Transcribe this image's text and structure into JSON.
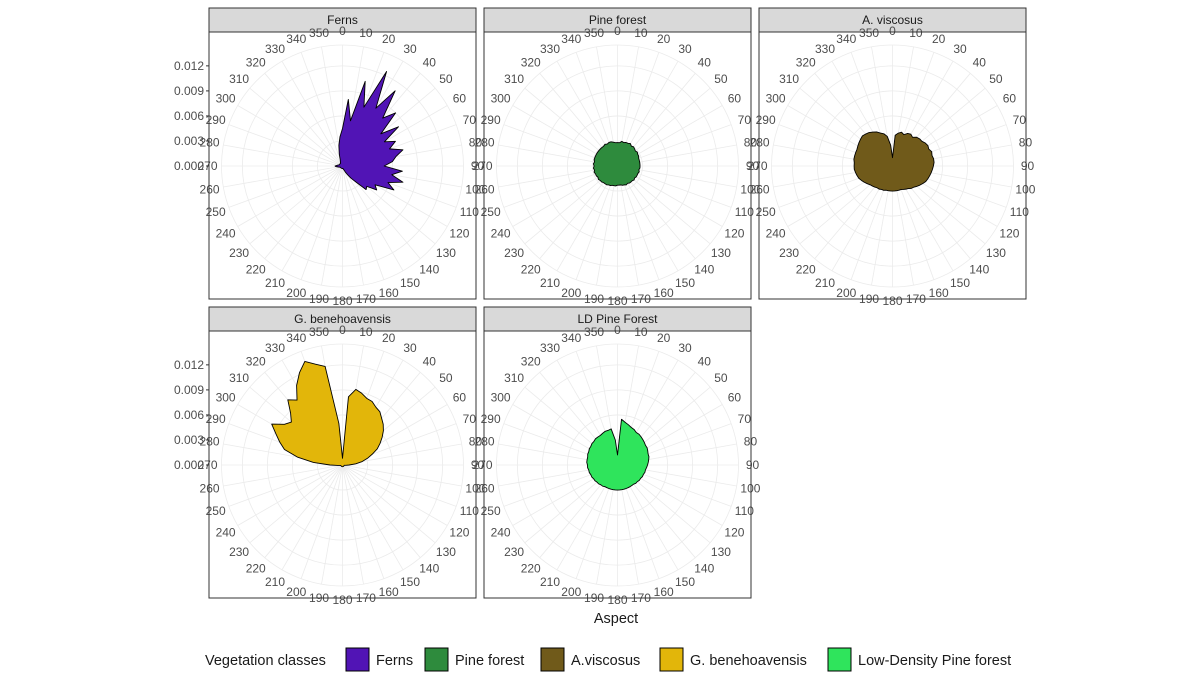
{
  "chart_data": {
    "type": "area",
    "coord": "polar",
    "xlabel": "Aspect",
    "theta_unit": "degrees",
    "theta_range": [
      0,
      360
    ],
    "theta_breaks": [
      0,
      10,
      20,
      30,
      40,
      50,
      60,
      70,
      80,
      90,
      100,
      110,
      120,
      130,
      140,
      150,
      160,
      170,
      180,
      190,
      200,
      210,
      220,
      230,
      240,
      250,
      260,
      270,
      280,
      290,
      300,
      310,
      320,
      330,
      340,
      350
    ],
    "r_breaks": [
      0.0,
      0.003,
      0.006,
      0.009,
      0.012
    ],
    "r_labels": [
      "0.000",
      "0.003",
      "0.006",
      "0.009",
      "0.012"
    ],
    "r_max": 0.0145,
    "grid": true,
    "legend": {
      "title": "Vegetation classes",
      "position": "bottom",
      "items": [
        {
          "label": "Ferns",
          "color": "#5114b5"
        },
        {
          "label": "Pine forest",
          "color": "#2e8b3d"
        },
        {
          "label": "A.viscosus",
          "color": "#705a1a"
        },
        {
          "label": "G. benehoavensis",
          "color": "#e2b60a"
        },
        {
          "label": "Low-Density Pine forest",
          "color": "#2fe45c"
        }
      ]
    },
    "panels": [
      {
        "title": "Ferns",
        "color": "#5114b5",
        "theta": [
          0,
          5,
          10,
          15,
          20,
          25,
          30,
          35,
          40,
          45,
          50,
          55,
          60,
          65,
          70,
          75,
          80,
          85,
          90,
          95,
          100,
          105,
          110,
          115,
          120,
          125,
          130,
          135,
          140,
          145,
          150,
          155,
          160,
          165,
          170,
          175,
          180,
          185,
          190,
          195,
          200,
          205,
          210,
          215,
          220,
          225,
          230,
          235,
          240,
          245,
          250,
          255,
          260,
          265,
          270,
          275,
          280,
          285,
          290,
          295,
          300,
          305,
          310,
          315,
          320,
          325,
          330,
          335,
          340,
          345,
          350,
          355
        ],
        "density": [
          0.0045,
          0.008,
          0.0055,
          0.0105,
          0.0075,
          0.0125,
          0.008,
          0.011,
          0.0075,
          0.009,
          0.006,
          0.0082,
          0.0058,
          0.007,
          0.006,
          0.0075,
          0.0065,
          0.006,
          0.005,
          0.0072,
          0.006,
          0.0075,
          0.0058,
          0.0068,
          0.0045,
          0.005,
          0.0038,
          0.004,
          0.0025,
          0.0018,
          0.0012,
          0.0008,
          0.0005,
          0.0004,
          0.0003,
          0.0003,
          0.0003,
          0.0003,
          0.0003,
          0.0003,
          0.0003,
          0.0003,
          0.0003,
          0.0003,
          0.0003,
          0.0003,
          0.0003,
          0.0003,
          0.0003,
          0.0003,
          0.0004,
          0.0005,
          0.0006,
          0.0008,
          0.0009,
          0.0007,
          0.0006,
          0.0005,
          0.0004,
          0.0004,
          0.0004,
          0.0004,
          0.0004,
          0.0004,
          0.0004,
          0.0004,
          0.0005,
          0.0006,
          0.0008,
          0.0015,
          0.0025,
          0.0035
        ]
      },
      {
        "title": "Pine forest",
        "color": "#2e8b3d",
        "theta": [
          0,
          5,
          10,
          15,
          20,
          25,
          30,
          35,
          40,
          45,
          50,
          55,
          60,
          65,
          70,
          75,
          80,
          85,
          90,
          95,
          100,
          105,
          110,
          115,
          120,
          125,
          130,
          135,
          140,
          145,
          150,
          155,
          160,
          165,
          170,
          175,
          180,
          185,
          190,
          195,
          200,
          205,
          210,
          215,
          220,
          225,
          230,
          235,
          240,
          245,
          250,
          255,
          260,
          265,
          270,
          275,
          280,
          285,
          290,
          295,
          300,
          305,
          310,
          315,
          320,
          325,
          330,
          335,
          340,
          345,
          350,
          355
        ],
        "density": [
          0.0028,
          0.0028,
          0.003,
          0.0029,
          0.003,
          0.003,
          0.0031,
          0.0029,
          0.003,
          0.0029,
          0.0028,
          0.0029,
          0.0028,
          0.0028,
          0.0027,
          0.0027,
          0.0027,
          0.0027,
          0.0027,
          0.0027,
          0.0026,
          0.0027,
          0.0026,
          0.0026,
          0.0026,
          0.0025,
          0.0026,
          0.0025,
          0.0025,
          0.0025,
          0.0024,
          0.0025,
          0.0024,
          0.0024,
          0.0023,
          0.0023,
          0.0023,
          0.0024,
          0.0024,
          0.0024,
          0.0025,
          0.0025,
          0.0026,
          0.0026,
          0.0026,
          0.0027,
          0.0027,
          0.0028,
          0.0027,
          0.0028,
          0.0028,
          0.0029,
          0.0028,
          0.0029,
          0.0028,
          0.0029,
          0.0028,
          0.0029,
          0.0029,
          0.0029,
          0.0029,
          0.0029,
          0.0029,
          0.0029,
          0.0029,
          0.0029,
          0.003,
          0.0029,
          0.003,
          0.003,
          0.0029,
          0.0028
        ]
      },
      {
        "title": "A. viscosus",
        "color": "#705a1a",
        "theta": [
          0,
          5,
          10,
          15,
          20,
          25,
          30,
          35,
          40,
          45,
          50,
          55,
          60,
          65,
          70,
          75,
          80,
          85,
          90,
          95,
          100,
          105,
          110,
          115,
          120,
          125,
          130,
          135,
          140,
          145,
          150,
          155,
          160,
          165,
          170,
          175,
          180,
          185,
          190,
          195,
          200,
          205,
          210,
          215,
          220,
          225,
          230,
          235,
          240,
          245,
          250,
          255,
          260,
          265,
          270,
          275,
          280,
          285,
          290,
          295,
          300,
          305,
          310,
          315,
          320,
          325,
          330,
          335,
          340,
          345,
          350,
          355
        ],
        "density": [
          0.001,
          0.0037,
          0.004,
          0.0042,
          0.004,
          0.0043,
          0.0044,
          0.0042,
          0.0045,
          0.0046,
          0.0046,
          0.0048,
          0.0049,
          0.0048,
          0.005,
          0.0049,
          0.005,
          0.005,
          0.0049,
          0.0048,
          0.0047,
          0.0046,
          0.0045,
          0.0044,
          0.0042,
          0.004,
          0.0038,
          0.0036,
          0.0035,
          0.0033,
          0.0032,
          0.0031,
          0.003,
          0.003,
          0.003,
          0.003,
          0.003,
          0.003,
          0.003,
          0.003,
          0.0031,
          0.0031,
          0.0032,
          0.0032,
          0.0033,
          0.0034,
          0.0035,
          0.0037,
          0.0039,
          0.0041,
          0.0043,
          0.0044,
          0.0045,
          0.0046,
          0.0046,
          0.0046,
          0.0047,
          0.0047,
          0.0047,
          0.0047,
          0.0048,
          0.0049,
          0.005,
          0.0051,
          0.005,
          0.0049,
          0.0047,
          0.0045,
          0.0042,
          0.004,
          0.0036,
          0.0025
        ]
      },
      {
        "title": "G. benehoavensis",
        "color": "#e2b60a",
        "theta": [
          0,
          5,
          10,
          15,
          20,
          25,
          30,
          35,
          40,
          45,
          50,
          55,
          60,
          65,
          70,
          75,
          80,
          85,
          90,
          95,
          100,
          105,
          110,
          115,
          120,
          125,
          130,
          135,
          140,
          145,
          150,
          155,
          160,
          165,
          170,
          175,
          180,
          185,
          190,
          195,
          200,
          205,
          210,
          215,
          220,
          225,
          230,
          235,
          240,
          245,
          250,
          255,
          260,
          265,
          270,
          275,
          280,
          285,
          290,
          295,
          300,
          305,
          310,
          315,
          320,
          325,
          330,
          335,
          340,
          345,
          350,
          355
        ],
        "density": [
          0.0008,
          0.0082,
          0.0092,
          0.0089,
          0.0085,
          0.0084,
          0.008,
          0.0078,
          0.0073,
          0.0069,
          0.0064,
          0.0058,
          0.0052,
          0.0046,
          0.0038,
          0.0031,
          0.0024,
          0.0016,
          0.0008,
          0.0004,
          0.0002,
          0.0002,
          0.0002,
          0.0002,
          0.0002,
          0.0002,
          0.0002,
          0.0002,
          0.0002,
          0.0002,
          0.0002,
          0.0002,
          0.0002,
          0.0002,
          0.0002,
          0.0002,
          0.0002,
          0.0002,
          0.0002,
          0.0002,
          0.0002,
          0.0002,
          0.0002,
          0.0002,
          0.0002,
          0.0002,
          0.0002,
          0.0002,
          0.0002,
          0.0002,
          0.0002,
          0.0002,
          0.0003,
          0.0006,
          0.0015,
          0.0035,
          0.0055,
          0.0072,
          0.008,
          0.0088,
          0.0098,
          0.0085,
          0.008,
          0.0088,
          0.0102,
          0.0095,
          0.011,
          0.0122,
          0.0132,
          0.0125,
          0.012,
          0.005
        ]
      },
      {
        "title": "LD Pine Forest",
        "color": "#2fe45c",
        "theta": [
          0,
          5,
          10,
          15,
          20,
          25,
          30,
          35,
          40,
          45,
          50,
          55,
          60,
          65,
          70,
          75,
          80,
          85,
          90,
          95,
          100,
          105,
          110,
          115,
          120,
          125,
          130,
          135,
          140,
          145,
          150,
          155,
          160,
          165,
          170,
          175,
          180,
          185,
          190,
          195,
          200,
          205,
          210,
          215,
          220,
          225,
          230,
          235,
          240,
          245,
          250,
          255,
          260,
          265,
          270,
          275,
          280,
          285,
          290,
          295,
          300,
          305,
          310,
          315,
          320,
          325,
          330,
          335,
          340,
          345,
          350,
          355
        ],
        "density": [
          0.0012,
          0.0055,
          0.0052,
          0.005,
          0.0048,
          0.0047,
          0.0045,
          0.0045,
          0.0044,
          0.0043,
          0.0042,
          0.0041,
          0.0041,
          0.004,
          0.0039,
          0.0039,
          0.0038,
          0.0037,
          0.0036,
          0.0035,
          0.0034,
          0.0034,
          0.0033,
          0.0033,
          0.0032,
          0.0032,
          0.0031,
          0.0031,
          0.003,
          0.003,
          0.003,
          0.003,
          0.003,
          0.003,
          0.003,
          0.003,
          0.003,
          0.003,
          0.003,
          0.003,
          0.003,
          0.003,
          0.003,
          0.0031,
          0.0031,
          0.0032,
          0.0032,
          0.0033,
          0.0033,
          0.0034,
          0.0034,
          0.0035,
          0.0035,
          0.0036,
          0.0036,
          0.0037,
          0.0037,
          0.0037,
          0.0038,
          0.0038,
          0.0039,
          0.0039,
          0.004,
          0.004,
          0.0041,
          0.0041,
          0.0041,
          0.0042,
          0.0043,
          0.0043,
          0.0044,
          0.003
        ]
      }
    ]
  }
}
